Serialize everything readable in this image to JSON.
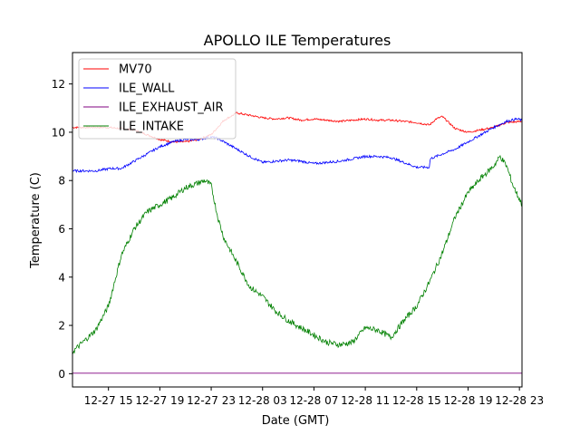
{
  "chart_data": {
    "type": "line",
    "title": "APOLLO ILE Temperatures",
    "xlabel": "Date (GMT)",
    "ylabel": "Temperature (C)",
    "x_unit": "hours since 12-27 00:00 GMT",
    "xlim": [
      12.2,
      47.2
    ],
    "ylim": [
      -0.55,
      13.3
    ],
    "grid": false,
    "legend_position": "top-left",
    "x_ticks": [
      {
        "value": 15,
        "label": "12-27 15"
      },
      {
        "value": 19,
        "label": "12-27 19"
      },
      {
        "value": 23,
        "label": "12-27 23"
      },
      {
        "value": 27,
        "label": "12-28 03"
      },
      {
        "value": 31,
        "label": "12-28 07"
      },
      {
        "value": 35,
        "label": "12-28 11"
      },
      {
        "value": 39,
        "label": "12-28 15"
      },
      {
        "value": 43,
        "label": "12-28 19"
      },
      {
        "value": 47,
        "label": "12-28 23"
      }
    ],
    "y_ticks": [
      {
        "value": 0,
        "label": "0"
      },
      {
        "value": 2,
        "label": "2"
      },
      {
        "value": 4,
        "label": "4"
      },
      {
        "value": 6,
        "label": "6"
      },
      {
        "value": 8,
        "label": "8"
      },
      {
        "value": 10,
        "label": "10"
      },
      {
        "value": 12,
        "label": "12"
      }
    ],
    "series": [
      {
        "name": "MV70",
        "color": "#ff0000",
        "noise": 0.04,
        "x": [
          12.2,
          15,
          17,
          19,
          20,
          21,
          22,
          23,
          24,
          25,
          26,
          27,
          28,
          29,
          30,
          31,
          32,
          33,
          34,
          35,
          36,
          37,
          38,
          39,
          40,
          40.5,
          41,
          41.5,
          42,
          43,
          44,
          45,
          46,
          47.2
        ],
        "y": [
          10.2,
          10.2,
          10.1,
          9.7,
          9.6,
          9.6,
          9.7,
          9.9,
          10.5,
          10.8,
          10.7,
          10.6,
          10.55,
          10.6,
          10.5,
          10.55,
          10.5,
          10.45,
          10.5,
          10.55,
          10.5,
          10.5,
          10.45,
          10.4,
          10.3,
          10.55,
          10.65,
          10.4,
          10.15,
          10.0,
          10.1,
          10.2,
          10.4,
          10.45
        ]
      },
      {
        "name": "ILE_WALL",
        "color": "#0000ff",
        "noise": 0.05,
        "x": [
          12.2,
          14,
          15.2,
          16,
          17,
          18,
          19,
          20,
          21,
          22,
          23,
          23.5,
          24,
          25,
          26,
          27,
          28,
          29,
          30,
          31,
          32,
          33,
          34,
          35,
          36,
          37,
          38,
          39,
          40,
          40.05,
          41,
          42,
          43,
          44,
          45,
          46,
          46.8,
          47.2
        ],
        "y": [
          8.4,
          8.4,
          8.5,
          8.5,
          8.8,
          9.1,
          9.4,
          9.6,
          9.7,
          9.7,
          9.8,
          9.75,
          9.6,
          9.3,
          9.0,
          8.75,
          8.8,
          8.85,
          8.8,
          8.7,
          8.75,
          8.8,
          8.9,
          9.0,
          9.0,
          8.95,
          8.75,
          8.55,
          8.55,
          8.9,
          9.1,
          9.3,
          9.6,
          9.9,
          10.2,
          10.45,
          10.55,
          10.5
        ]
      },
      {
        "name": "ILE_EXHAUST_AIR",
        "color": "#800080",
        "noise": 0,
        "x": [
          12.2,
          47.2
        ],
        "y": [
          0.02,
          0.02
        ]
      },
      {
        "name": "ILE_INTAKE",
        "color": "#008000",
        "noise": 0.12,
        "x": [
          12.2,
          13,
          14,
          15,
          16,
          17,
          18,
          19,
          20,
          21,
          22,
          22.5,
          23,
          23.5,
          24,
          25,
          26,
          27,
          28,
          29,
          30,
          31,
          32,
          33,
          34,
          35,
          36,
          37,
          38,
          39,
          40,
          41,
          42,
          43,
          44,
          45,
          45.5,
          46,
          46.5,
          47.2
        ],
        "y": [
          0.9,
          1.3,
          1.8,
          2.8,
          4.9,
          6.0,
          6.7,
          7.0,
          7.3,
          7.7,
          7.9,
          8.0,
          7.8,
          6.5,
          5.6,
          4.6,
          3.6,
          3.2,
          2.6,
          2.2,
          1.9,
          1.6,
          1.3,
          1.2,
          1.3,
          1.9,
          1.8,
          1.5,
          2.2,
          2.8,
          3.8,
          5.0,
          6.5,
          7.5,
          8.1,
          8.6,
          9.0,
          8.6,
          7.8,
          7.0
        ]
      }
    ]
  }
}
